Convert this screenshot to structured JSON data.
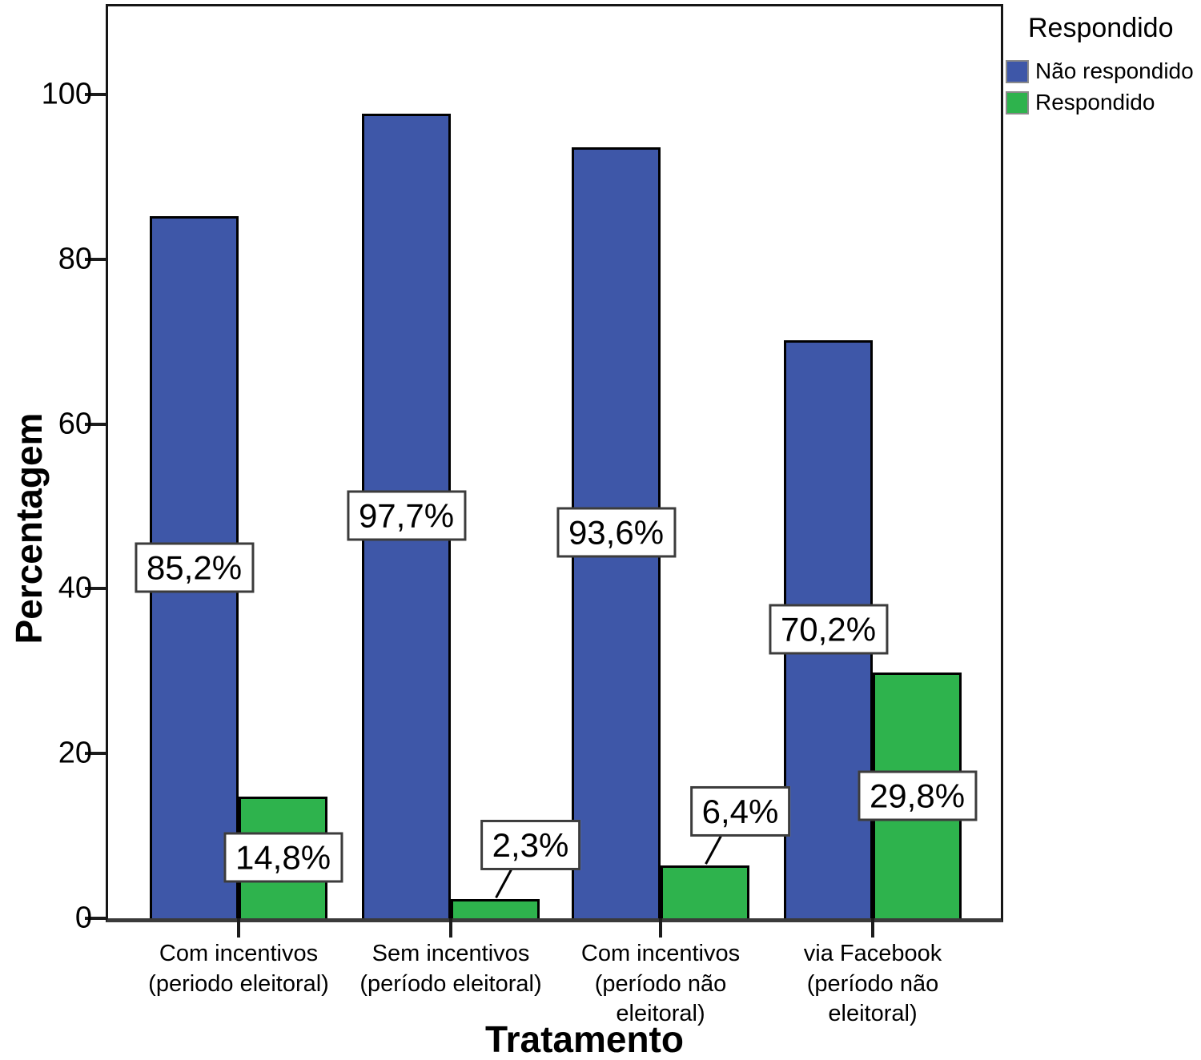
{
  "axes": {
    "x_title": "Tratamento",
    "y_title": "Percentagem"
  },
  "legend": {
    "title": "Respondido",
    "items": [
      {
        "label": "Não respondido",
        "color": "#3E57A8"
      },
      {
        "label": "Respondido",
        "color": "#2EB34D"
      }
    ]
  },
  "colors": {
    "bar_blue": "#3E57A8",
    "bar_green": "#2EB34D",
    "bar_border": "#000000",
    "label_box_border": "#3C3C3C",
    "axis": "#1C1C1C"
  },
  "chart_data": {
    "type": "bar",
    "title": "",
    "xlabel": "Tratamento",
    "ylabel": "Percentagem",
    "ylim": [
      0,
      100
    ],
    "yticks": [
      0,
      20,
      40,
      60,
      80,
      100
    ],
    "grid": false,
    "legend_title": "Respondido",
    "legend_position": "top-right-outside",
    "categories": [
      "Com incentivos (periodo eleitoral)",
      "Sem incentivos (período eleitoral)",
      "Com incentivos (período não eleitoral)",
      "via Facebook (período não eleitoral)"
    ],
    "category_label_lines": [
      [
        "Com incentivos",
        "(periodo eleitoral)"
      ],
      [
        "Sem incentivos",
        "(período eleitoral)"
      ],
      [
        "Com incentivos",
        "(período não",
        "eleitoral)"
      ],
      [
        "via Facebook",
        "(período não",
        "eleitoral)"
      ]
    ],
    "series": [
      {
        "name": "Não respondido",
        "color": "#3E57A8",
        "values": [
          85.2,
          97.7,
          93.6,
          70.2
        ],
        "value_labels": [
          "85,2%",
          "97,7%",
          "93,6%",
          "70,2%"
        ]
      },
      {
        "name": "Respondido",
        "color": "#2EB34D",
        "values": [
          14.8,
          2.3,
          6.4,
          29.8
        ],
        "value_labels": [
          "14,8%",
          "2,3%",
          "6,4%",
          "29,8%"
        ]
      }
    ]
  }
}
